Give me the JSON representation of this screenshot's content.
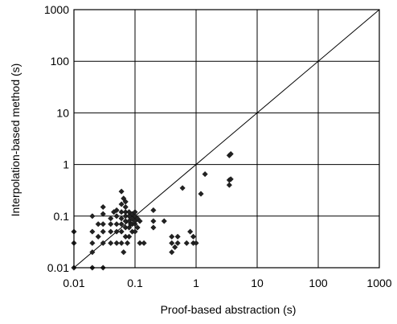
{
  "chart_data": {
    "type": "scatter",
    "title": "",
    "xlabel": "Proof-based abstraction  (s)",
    "ylabel": "Interpolation-based method (s)",
    "xscale": "log",
    "yscale": "log",
    "xlim": [
      0.01,
      1000
    ],
    "ylim": [
      0.01,
      1000
    ],
    "x_ticks": [
      "0.01",
      "0.1",
      "1",
      "10",
      "100",
      "1000"
    ],
    "y_ticks": [
      "0.01",
      "0.1",
      "1",
      "10",
      "100",
      "1000"
    ],
    "grid": true,
    "legend": "none",
    "reference_line": "y = x",
    "marker": "diamond",
    "marker_color": "#222222",
    "points": [
      {
        "x": 0.01,
        "y": 0.01
      },
      {
        "x": 0.01,
        "y": 0.03
      },
      {
        "x": 0.01,
        "y": 0.05
      },
      {
        "x": 0.02,
        "y": 0.01
      },
      {
        "x": 0.02,
        "y": 0.02
      },
      {
        "x": 0.02,
        "y": 0.03
      },
      {
        "x": 0.02,
        "y": 0.05
      },
      {
        "x": 0.02,
        "y": 0.1
      },
      {
        "x": 0.025,
        "y": 0.04
      },
      {
        "x": 0.025,
        "y": 0.07
      },
      {
        "x": 0.03,
        "y": 0.01
      },
      {
        "x": 0.03,
        "y": 0.03
      },
      {
        "x": 0.03,
        "y": 0.05
      },
      {
        "x": 0.03,
        "y": 0.07
      },
      {
        "x": 0.03,
        "y": 0.11
      },
      {
        "x": 0.03,
        "y": 0.15
      },
      {
        "x": 0.04,
        "y": 0.03
      },
      {
        "x": 0.04,
        "y": 0.05
      },
      {
        "x": 0.04,
        "y": 0.07
      },
      {
        "x": 0.04,
        "y": 0.09
      },
      {
        "x": 0.045,
        "y": 0.12
      },
      {
        "x": 0.05,
        "y": 0.03
      },
      {
        "x": 0.05,
        "y": 0.05
      },
      {
        "x": 0.05,
        "y": 0.07
      },
      {
        "x": 0.05,
        "y": 0.1
      },
      {
        "x": 0.05,
        "y": 0.13
      },
      {
        "x": 0.06,
        "y": 0.03
      },
      {
        "x": 0.06,
        "y": 0.05
      },
      {
        "x": 0.06,
        "y": 0.07
      },
      {
        "x": 0.06,
        "y": 0.09
      },
      {
        "x": 0.06,
        "y": 0.12
      },
      {
        "x": 0.06,
        "y": 0.17
      },
      {
        "x": 0.06,
        "y": 0.3
      },
      {
        "x": 0.065,
        "y": 0.02
      },
      {
        "x": 0.065,
        "y": 0.22
      },
      {
        "x": 0.07,
        "y": 0.04
      },
      {
        "x": 0.07,
        "y": 0.06
      },
      {
        "x": 0.07,
        "y": 0.08
      },
      {
        "x": 0.07,
        "y": 0.1
      },
      {
        "x": 0.07,
        "y": 0.12
      },
      {
        "x": 0.07,
        "y": 0.15
      },
      {
        "x": 0.07,
        "y": 0.19
      },
      {
        "x": 0.075,
        "y": 0.03
      },
      {
        "x": 0.08,
        "y": 0.04
      },
      {
        "x": 0.08,
        "y": 0.06
      },
      {
        "x": 0.08,
        "y": 0.08
      },
      {
        "x": 0.08,
        "y": 0.1
      },
      {
        "x": 0.08,
        "y": 0.12
      },
      {
        "x": 0.085,
        "y": 0.07
      },
      {
        "x": 0.09,
        "y": 0.05
      },
      {
        "x": 0.09,
        "y": 0.07
      },
      {
        "x": 0.09,
        "y": 0.09
      },
      {
        "x": 0.09,
        "y": 0.11
      },
      {
        "x": 0.1,
        "y": 0.05
      },
      {
        "x": 0.1,
        "y": 0.07
      },
      {
        "x": 0.1,
        "y": 0.08
      },
      {
        "x": 0.1,
        "y": 0.1
      },
      {
        "x": 0.1,
        "y": 0.12
      },
      {
        "x": 0.11,
        "y": 0.06
      },
      {
        "x": 0.11,
        "y": 0.09
      },
      {
        "x": 0.12,
        "y": 0.03
      },
      {
        "x": 0.12,
        "y": 0.08
      },
      {
        "x": 0.14,
        "y": 0.03
      },
      {
        "x": 0.2,
        "y": 0.06
      },
      {
        "x": 0.2,
        "y": 0.08
      },
      {
        "x": 0.2,
        "y": 0.13
      },
      {
        "x": 0.3,
        "y": 0.08
      },
      {
        "x": 0.4,
        "y": 0.02
      },
      {
        "x": 0.4,
        "y": 0.03
      },
      {
        "x": 0.4,
        "y": 0.04
      },
      {
        "x": 0.45,
        "y": 0.025
      },
      {
        "x": 0.5,
        "y": 0.03
      },
      {
        "x": 0.5,
        "y": 0.04
      },
      {
        "x": 0.6,
        "y": 0.35
      },
      {
        "x": 0.7,
        "y": 0.03
      },
      {
        "x": 0.8,
        "y": 0.05
      },
      {
        "x": 0.9,
        "y": 0.03
      },
      {
        "x": 0.9,
        "y": 0.04
      },
      {
        "x": 1.0,
        "y": 0.03
      },
      {
        "x": 1.2,
        "y": 0.27
      },
      {
        "x": 1.4,
        "y": 0.65
      },
      {
        "x": 3.5,
        "y": 0.4
      },
      {
        "x": 3.5,
        "y": 0.5
      },
      {
        "x": 3.5,
        "y": 1.5
      },
      {
        "x": 3.7,
        "y": 0.52
      },
      {
        "x": 3.7,
        "y": 1.6
      }
    ]
  }
}
